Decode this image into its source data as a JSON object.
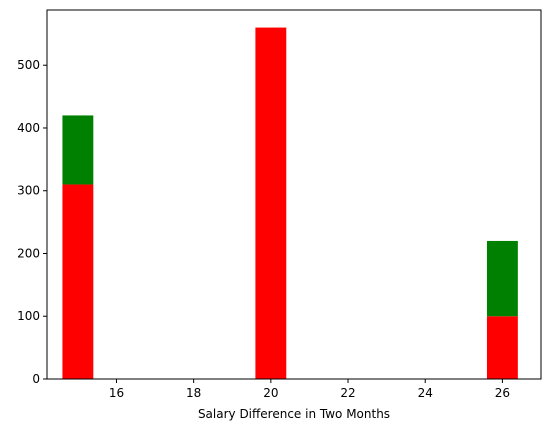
{
  "chart_data": {
    "type": "bar",
    "stacked": true,
    "xlabel": "Salary Difference in Two Months",
    "ylabel": "",
    "title": "",
    "xlim": [
      14.2,
      27.0
    ],
    "ylim": [
      0,
      588
    ],
    "bar_width": 0.8,
    "x": [
      15,
      20,
      26
    ],
    "series": [
      {
        "color": "#ff0000",
        "values": [
          310,
          560,
          100
        ]
      },
      {
        "color": "#008000",
        "values": [
          110,
          0,
          120
        ]
      }
    ],
    "xticks": [
      16,
      18,
      20,
      22,
      24,
      26
    ],
    "xtick_labels": [
      "16",
      "18",
      "20",
      "22",
      "24",
      "26"
    ],
    "yticks": [
      0,
      100,
      200,
      300,
      400,
      500
    ],
    "ytick_labels": [
      "0",
      "100",
      "200",
      "300",
      "400",
      "500"
    ],
    "grid": false,
    "legend": "none"
  }
}
